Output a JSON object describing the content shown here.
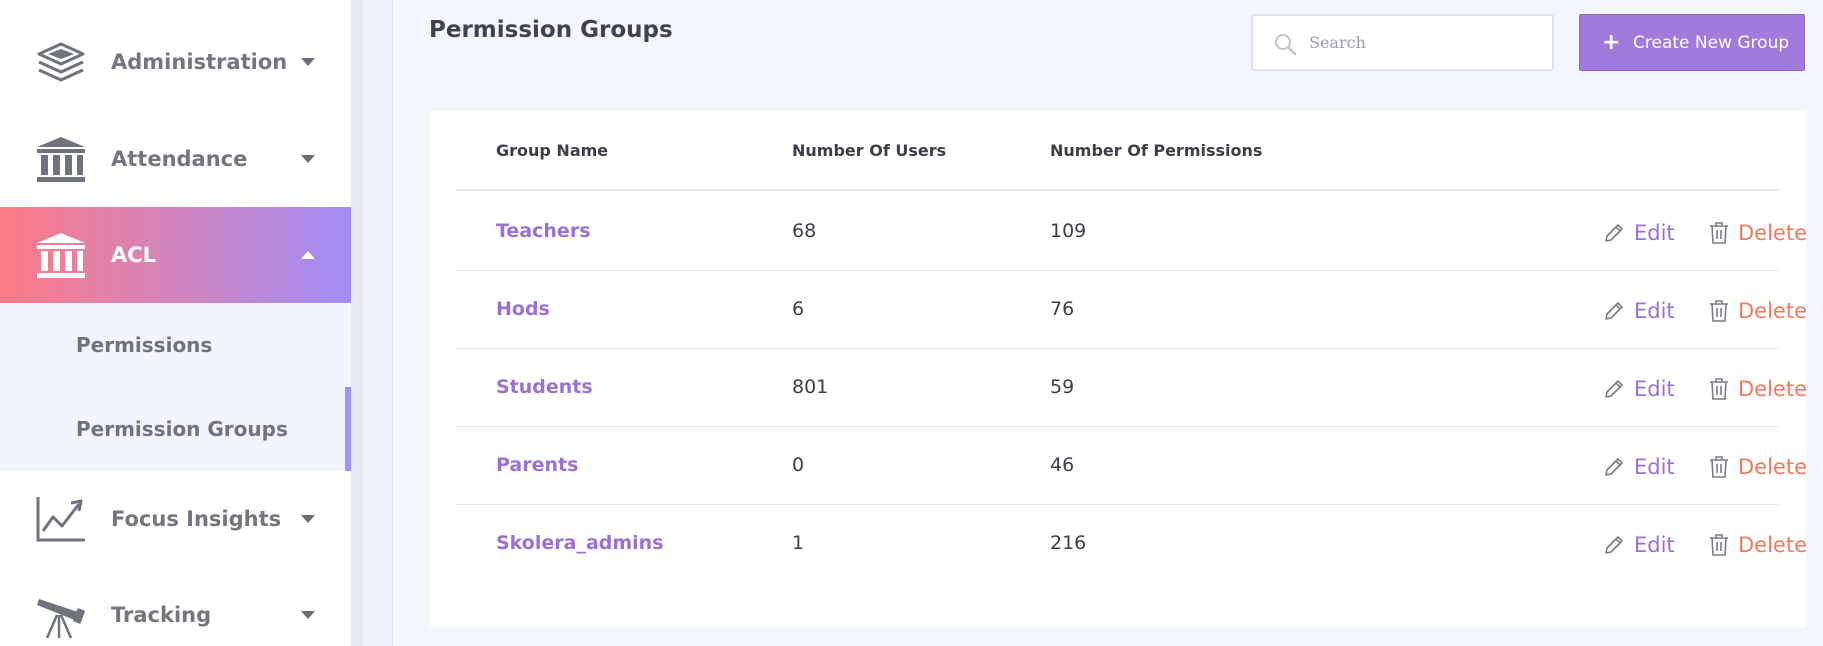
{
  "sidebar": {
    "items": [
      {
        "label": "Administration",
        "icon": "layers-icon"
      },
      {
        "label": "Attendance",
        "icon": "institution-icon"
      },
      {
        "label": "ACL",
        "icon": "institution-icon"
      },
      {
        "label": "Focus Insights",
        "icon": "line-chart-icon"
      },
      {
        "label": "Tracking",
        "icon": "telescope-icon"
      }
    ],
    "submenu": [
      {
        "label": "Permissions"
      },
      {
        "label": "Permission Groups"
      }
    ],
    "active_item": "ACL",
    "active_subitem": "Permission Groups"
  },
  "header": {
    "title": "Permission Groups",
    "search_placeholder": "Search",
    "create_button_label": "Create New Group"
  },
  "table": {
    "columns": [
      "Group Name",
      "Number Of Users",
      "Number Of Permissions"
    ],
    "rows": [
      {
        "name": "Teachers",
        "users": "68",
        "permissions": "109"
      },
      {
        "name": "Hods",
        "users": "6",
        "permissions": "76"
      },
      {
        "name": "Students",
        "users": "801",
        "permissions": "59"
      },
      {
        "name": "Parents",
        "users": "0",
        "permissions": "46"
      },
      {
        "name": "Skolera_admins",
        "users": "1",
        "permissions": "216"
      }
    ],
    "edit_label": "Edit",
    "delete_label": "Delete"
  },
  "colors": {
    "accent": "#a17bdb",
    "delete": "#f07a5d",
    "active_gradient_start": "#fb7b86",
    "active_gradient_end": "#a08df7"
  }
}
